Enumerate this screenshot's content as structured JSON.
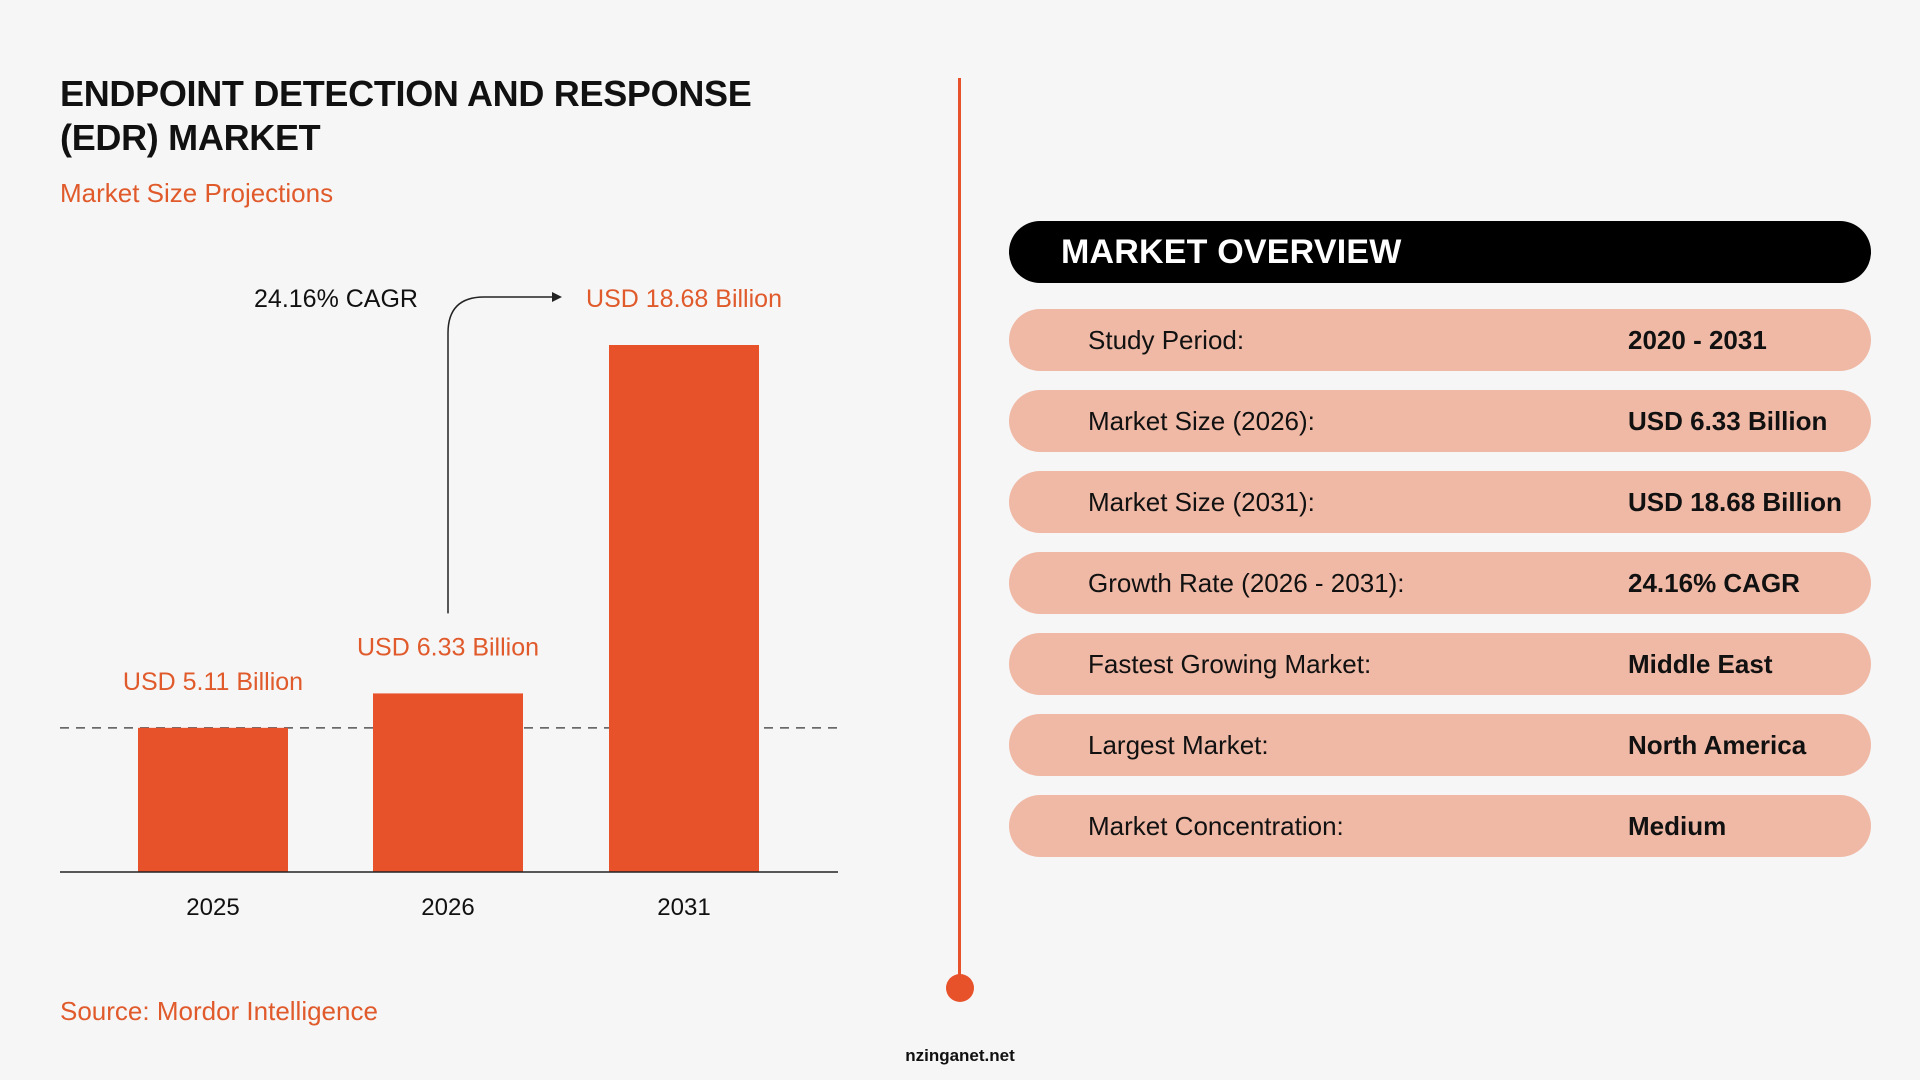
{
  "header": {
    "title_line1": "ENDPOINT DETECTION AND RESPONSE",
    "title_line2": "(EDR) MARKET",
    "subtitle": "Market Size Projections"
  },
  "chart_data": {
    "type": "bar",
    "categories": [
      "2025",
      "2026",
      "2031"
    ],
    "values": [
      5.11,
      6.33,
      18.68
    ],
    "data_labels": [
      "USD 5.11 Billion",
      "USD 6.33 Billion",
      "USD 18.68 Billion"
    ],
    "unit": "USD Billion",
    "annotation": "24.16% CAGR",
    "baseline_reference_value": 5.11,
    "grid": false,
    "bar_color": "#e8522a",
    "label_color": "#e05a2b"
  },
  "overview": {
    "title": "MARKET OVERVIEW",
    "rows": [
      {
        "label": "Study Period:",
        "value": "2020 - 2031"
      },
      {
        "label": "Market Size (2026):",
        "value": "USD 6.33 Billion"
      },
      {
        "label": "Market Size (2031):",
        "value": "USD 18.68 Billion"
      },
      {
        "label": "Growth Rate (2026 - 2031):",
        "value": "24.16% CAGR"
      },
      {
        "label": "Fastest Growing Market:",
        "value": "Middle East"
      },
      {
        "label": "Largest Market:",
        "value": "North America"
      },
      {
        "label": "Market Concentration:",
        "value": "Medium"
      }
    ]
  },
  "footer": {
    "source": "Source: Mordor Intelligence",
    "website": "nzinganet.net"
  },
  "colors": {
    "accent": "#e8522a",
    "row_bg": "#f0b9a6",
    "header_bg": "#000000",
    "page_bg": "#f6f6f6"
  }
}
